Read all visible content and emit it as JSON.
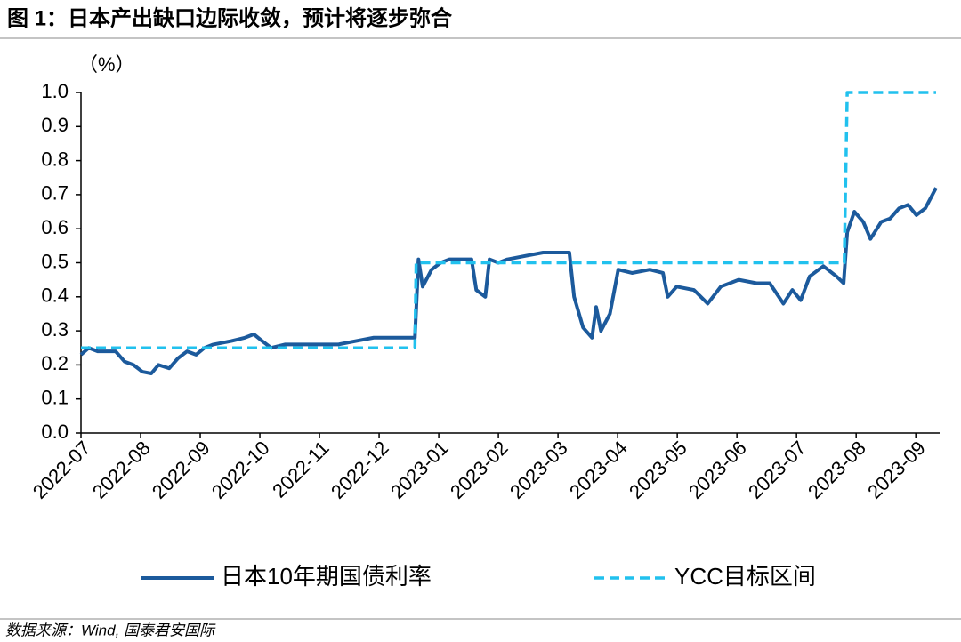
{
  "chart_data": {
    "type": "line",
    "title": "图 1：日本产出缺口边际收敛，预计将逐步弥合",
    "y_label": "（%）",
    "source": "数据来源：Wind, 国泰君安国际",
    "xlim": [
      0,
      14.4
    ],
    "xticks": [
      {
        "value": 0,
        "label": "2022-07"
      },
      {
        "value": 1,
        "label": "2022-08"
      },
      {
        "value": 2,
        "label": "2022-09"
      },
      {
        "value": 3,
        "label": "2022-10"
      },
      {
        "value": 4,
        "label": "2022-11"
      },
      {
        "value": 5,
        "label": "2022-12"
      },
      {
        "value": 6,
        "label": "2023-01"
      },
      {
        "value": 7,
        "label": "2023-02"
      },
      {
        "value": 8,
        "label": "2023-03"
      },
      {
        "value": 9,
        "label": "2023-04"
      },
      {
        "value": 10,
        "label": "2023-05"
      },
      {
        "value": 11,
        "label": "2023-06"
      },
      {
        "value": 12,
        "label": "2023-07"
      },
      {
        "value": 13,
        "label": "2023-08"
      },
      {
        "value": 14,
        "label": "2023-09"
      }
    ],
    "ylim": [
      0,
      1
    ],
    "yticks": [
      {
        "value": 0,
        "label": "0.0"
      },
      0.1,
      0.2,
      0.3,
      0.4,
      0.5,
      0.6,
      0.7,
      0.8,
      0.9,
      {
        "value": 1,
        "label": "1.0"
      }
    ],
    "series": [
      {
        "name": "日本10年期国债利率",
        "color": "#1c5a9c",
        "dash": false,
        "x": [
          0,
          0.13,
          0.28,
          0.58,
          0.73,
          0.88,
          1.03,
          1.18,
          1.3,
          1.48,
          1.63,
          1.78,
          1.93,
          2.07,
          2.22,
          2.52,
          2.75,
          2.9,
          3.04,
          3.19,
          3.42,
          3.72,
          4.01,
          4.31,
          4.61,
          4.91,
          5.21,
          5.51,
          5.6,
          5.66,
          5.73,
          5.88,
          6.03,
          6.18,
          6.55,
          6.63,
          6.78,
          6.85,
          7.0,
          7.15,
          7.45,
          7.75,
          8.19,
          8.27,
          8.42,
          8.57,
          8.64,
          8.72,
          8.87,
          9.01,
          9.24,
          9.54,
          9.76,
          9.84,
          9.99,
          10.28,
          10.51,
          10.73,
          11.03,
          11.33,
          11.55,
          11.78,
          11.93,
          12.07,
          12.22,
          12.45,
          12.67,
          12.79,
          12.85,
          12.97,
          13.12,
          13.24,
          13.42,
          13.57,
          13.72,
          13.87,
          14.01,
          14.16,
          14.34
        ],
        "values": [
          0.23,
          0.25,
          0.24,
          0.24,
          0.21,
          0.2,
          0.18,
          0.175,
          0.2,
          0.19,
          0.22,
          0.24,
          0.23,
          0.25,
          0.26,
          0.27,
          0.28,
          0.29,
          0.27,
          0.25,
          0.26,
          0.26,
          0.26,
          0.26,
          0.27,
          0.28,
          0.28,
          0.28,
          0.28,
          0.51,
          0.43,
          0.48,
          0.5,
          0.51,
          0.51,
          0.42,
          0.4,
          0.51,
          0.5,
          0.51,
          0.52,
          0.53,
          0.53,
          0.4,
          0.31,
          0.28,
          0.37,
          0.3,
          0.35,
          0.48,
          0.47,
          0.48,
          0.47,
          0.4,
          0.43,
          0.42,
          0.38,
          0.43,
          0.45,
          0.44,
          0.44,
          0.38,
          0.42,
          0.39,
          0.46,
          0.49,
          0.46,
          0.44,
          0.59,
          0.65,
          0.62,
          0.57,
          0.62,
          0.63,
          0.66,
          0.67,
          0.64,
          0.66,
          0.72
        ]
      },
      {
        "name": "YCC目标区间",
        "color": "#21c1ee",
        "dash": true,
        "x": [
          0,
          5.6,
          5.62,
          12.8,
          12.85,
          14.34
        ],
        "values": [
          0.25,
          0.25,
          0.5,
          0.5,
          1.0,
          1.0
        ]
      }
    ]
  }
}
